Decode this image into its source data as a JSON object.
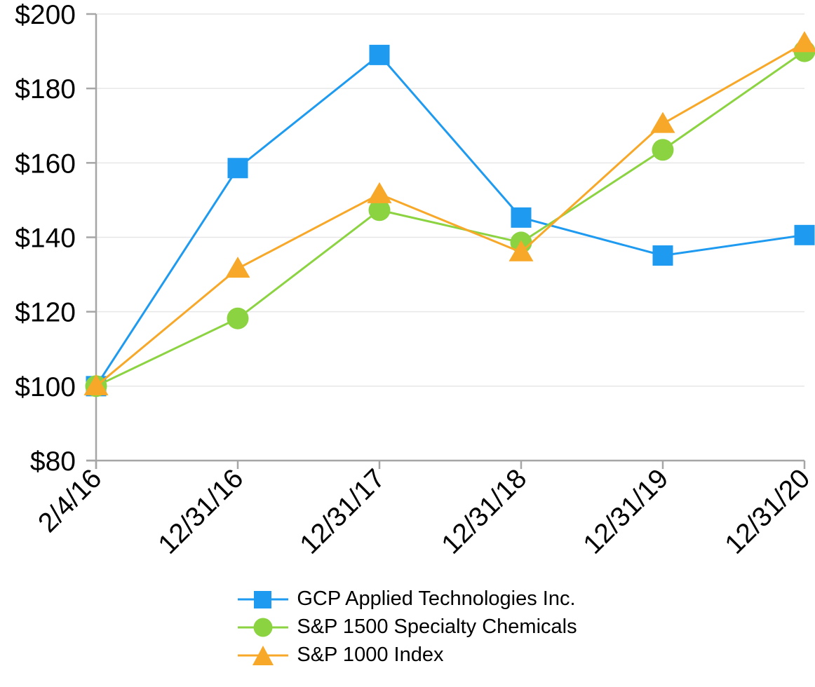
{
  "page": {
    "background_color": "#FFFFFF"
  },
  "chart_data": {
    "type": "line",
    "title": "",
    "xlabel": "",
    "ylabel": "",
    "x_labels": [
      "2/4/16",
      "12/31/16",
      "12/31/17",
      "12/31/18",
      "12/31/19",
      "12/31/20"
    ],
    "series": [
      {
        "name": "GCP Applied Technologies Inc.",
        "marker": "square",
        "color": "#1E9BF0",
        "values": [
          100,
          158.6,
          189.0,
          145.3,
          135.1,
          140.6
        ]
      },
      {
        "name": "S&P 1500 Specialty Chemicals",
        "marker": "circle",
        "color": "#8CD342",
        "values": [
          100,
          118.2,
          147.3,
          138.6,
          163.5,
          190.0
        ]
      },
      {
        "name": "S&P 1000 Index",
        "marker": "triangle",
        "color": "#F8A828",
        "values": [
          100,
          131.6,
          151.6,
          136.0,
          170.5,
          192.2
        ]
      }
    ],
    "y_axis": {
      "min": 80,
      "max": 200,
      "step": 20,
      "tick_labels": [
        "$80",
        "$100",
        "$120",
        "$140",
        "$160",
        "$180",
        "$200"
      ],
      "currency_format": "$"
    },
    "grid": "horizontal",
    "gridlines_visible": true,
    "legend_position": "bottom",
    "axis_color": "#A6A6A6",
    "grid_color": "#E7E7E7",
    "text_color": "#000000"
  }
}
